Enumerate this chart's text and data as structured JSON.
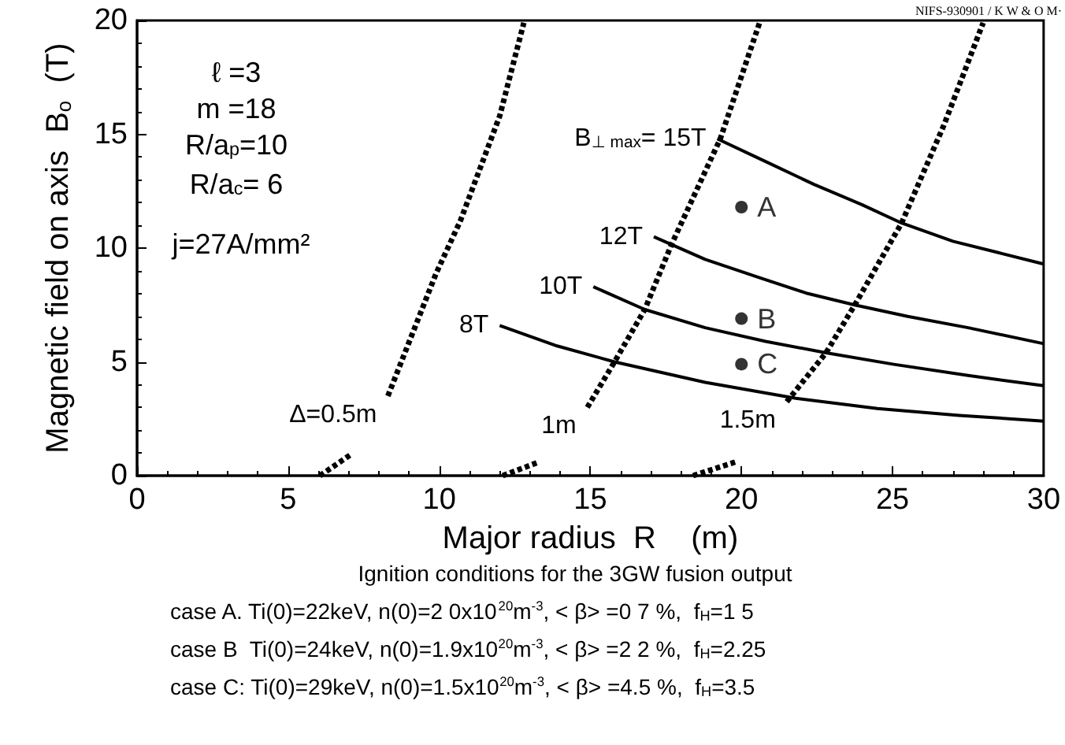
{
  "chart_data": {
    "type": "line",
    "xlabel": "Major radius  R    (m)",
    "ylabel": "Magnetic field on axis  B$_{o}$  (T)",
    "xlim": [
      0,
      30
    ],
    "xticks": [
      0,
      5,
      10,
      15,
      20,
      25,
      30
    ],
    "ylim": [
      0,
      20
    ],
    "yticks": [
      0,
      5,
      10,
      15,
      20
    ],
    "grid": false,
    "legend": false,
    "marker": "none",
    "series": [
      {
        "name": "B$_{⊥ max}$= 15T",
        "color": "#000000",
        "line_style": "solid",
        "x": [
          19.2,
          20.8,
          22.4,
          24,
          25.3,
          27,
          28.5,
          30
        ],
        "values": [
          14.8,
          13.8,
          12.8,
          11.9,
          11.1,
          10.3,
          9.8,
          9.3
        ]
      },
      {
        "name": "12T",
        "color": "#000000",
        "line_style": "solid",
        "x": [
          17.1,
          18.8,
          20.6,
          22.2,
          23.75,
          25.5,
          27.5,
          30
        ],
        "values": [
          10.5,
          9.5,
          8.7,
          8.0,
          7.5,
          7.0,
          6.5,
          5.8
        ]
      },
      {
        "name": "10T",
        "color": "#000000",
        "line_style": "solid",
        "x": [
          15.1,
          16.8,
          18.8,
          20.8,
          22.8,
          25,
          27.5,
          30
        ],
        "values": [
          8.3,
          7.3,
          6.5,
          5.9,
          5.4,
          4.9,
          4.4,
          3.95
        ]
      },
      {
        "name": "8T",
        "color": "#000000",
        "line_style": "solid",
        "x": [
          12,
          13.9,
          15.8,
          18.8,
          21.8,
          24.5,
          27.2,
          30
        ],
        "values": [
          6.6,
          5.7,
          5.0,
          4.1,
          3.4,
          2.95,
          2.65,
          2.4
        ]
      },
      {
        "name": "Δ=0.5m",
        "color": "#000000",
        "line_style": "dashed",
        "x": [
          6.05,
          7.1,
          7.7,
          8.3,
          9.9,
          10.7,
          12,
          12.8
        ],
        "values": [
          0,
          0.95,
          null,
          3.5,
          8.9,
          11.2,
          15.8,
          19.9
        ]
      },
      {
        "name": "1m",
        "color": "#000000",
        "line_style": "dashed",
        "x": [
          12.1,
          13.3,
          14.1,
          14.9,
          15.8,
          16.8,
          17.7,
          19.3,
          20.6
        ],
        "values": [
          0,
          0.6,
          null,
          3.0,
          5.0,
          7.3,
          10.2,
          14.8,
          19.9
        ]
      },
      {
        "name": "1.5m",
        "color": "#000000",
        "line_style": "dashed",
        "x": [
          18.4,
          19.8,
          20.6,
          21.5,
          22.8,
          23.75,
          25.3,
          26.7,
          28
        ],
        "values": [
          0,
          0.6,
          null,
          3.25,
          5.4,
          7.5,
          11.1,
          15.4,
          19.9
        ]
      },
      {
        "type": "scatter",
        "marker": "circle",
        "color": "#000000",
        "x": [
          20,
          20,
          20
        ],
        "values": [
          11.8,
          6.9,
          4.9
        ],
        "value_labels": [
          "A",
          "B",
          "C"
        ]
      }
    ],
    "annotations": [
      "ℓ =3",
      "m =18",
      "R/a$_{p}$=10",
      "R/a$_{c}$= 6",
      "j=27A/mm²",
      "NIFS-930901 / K W & O M·",
      "Ignition conditions for the 3GW fusion output",
      "case A. Ti(0)=22keV, n(0)=2 0x10$^{20}$m$^{-3}$, < β> =0 7 %,  f$_{H}$=1 5",
      "case B  Ti(0)=24keV, n(0)=1.9x10$^{20}$m$^{-3}$, < β> =2 2 %,  f$_{H}$=2.25",
      "case C: Ti(0)=29keV, n(0)=1.5x10$^{20}$m$^{-3}$, < β> =4.5 %,  f$_{H}$=3.5"
    ]
  }
}
